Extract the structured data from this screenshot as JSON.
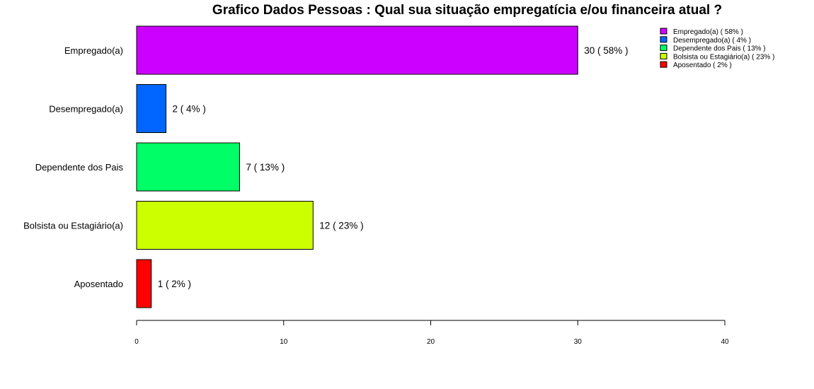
{
  "chart_data": {
    "type": "bar",
    "orientation": "horizontal",
    "title": "Grafico Dados Pessoas : Qual sua situação empregatícia e/ou financeira atual ?",
    "xlabel": "",
    "ylabel": "",
    "xlim": [
      0,
      40
    ],
    "x_ticks": [
      0,
      10,
      20,
      30,
      40
    ],
    "x_tick_labels": [
      "0",
      "10",
      "20",
      "30",
      "40"
    ],
    "grid": false,
    "legend_position": "top-right",
    "categories": [
      "Empregado(a)",
      "Desempregado(a)",
      "Dependente dos Pais",
      "Bolsista ou Estagiário(a)",
      "Aposentado"
    ],
    "values": [
      30,
      2,
      7,
      12,
      1
    ],
    "data_labels": [
      "30 ( 58% )",
      "2 ( 4% )",
      "7 ( 13% )",
      "12 ( 23% )",
      "1 ( 2% )"
    ],
    "colors": [
      "#CC00FF",
      "#0066FF",
      "#00FF66",
      "#CCFF00",
      "#FF0000"
    ],
    "legend": [
      "Empregado(a)  ( 58% )",
      "Desempregado(a)  ( 4% )",
      "Dependente dos Pais  ( 13% )",
      "Bolsista ou Estagiário(a)  ( 23% )",
      "Aposentado  ( 2% )"
    ]
  }
}
